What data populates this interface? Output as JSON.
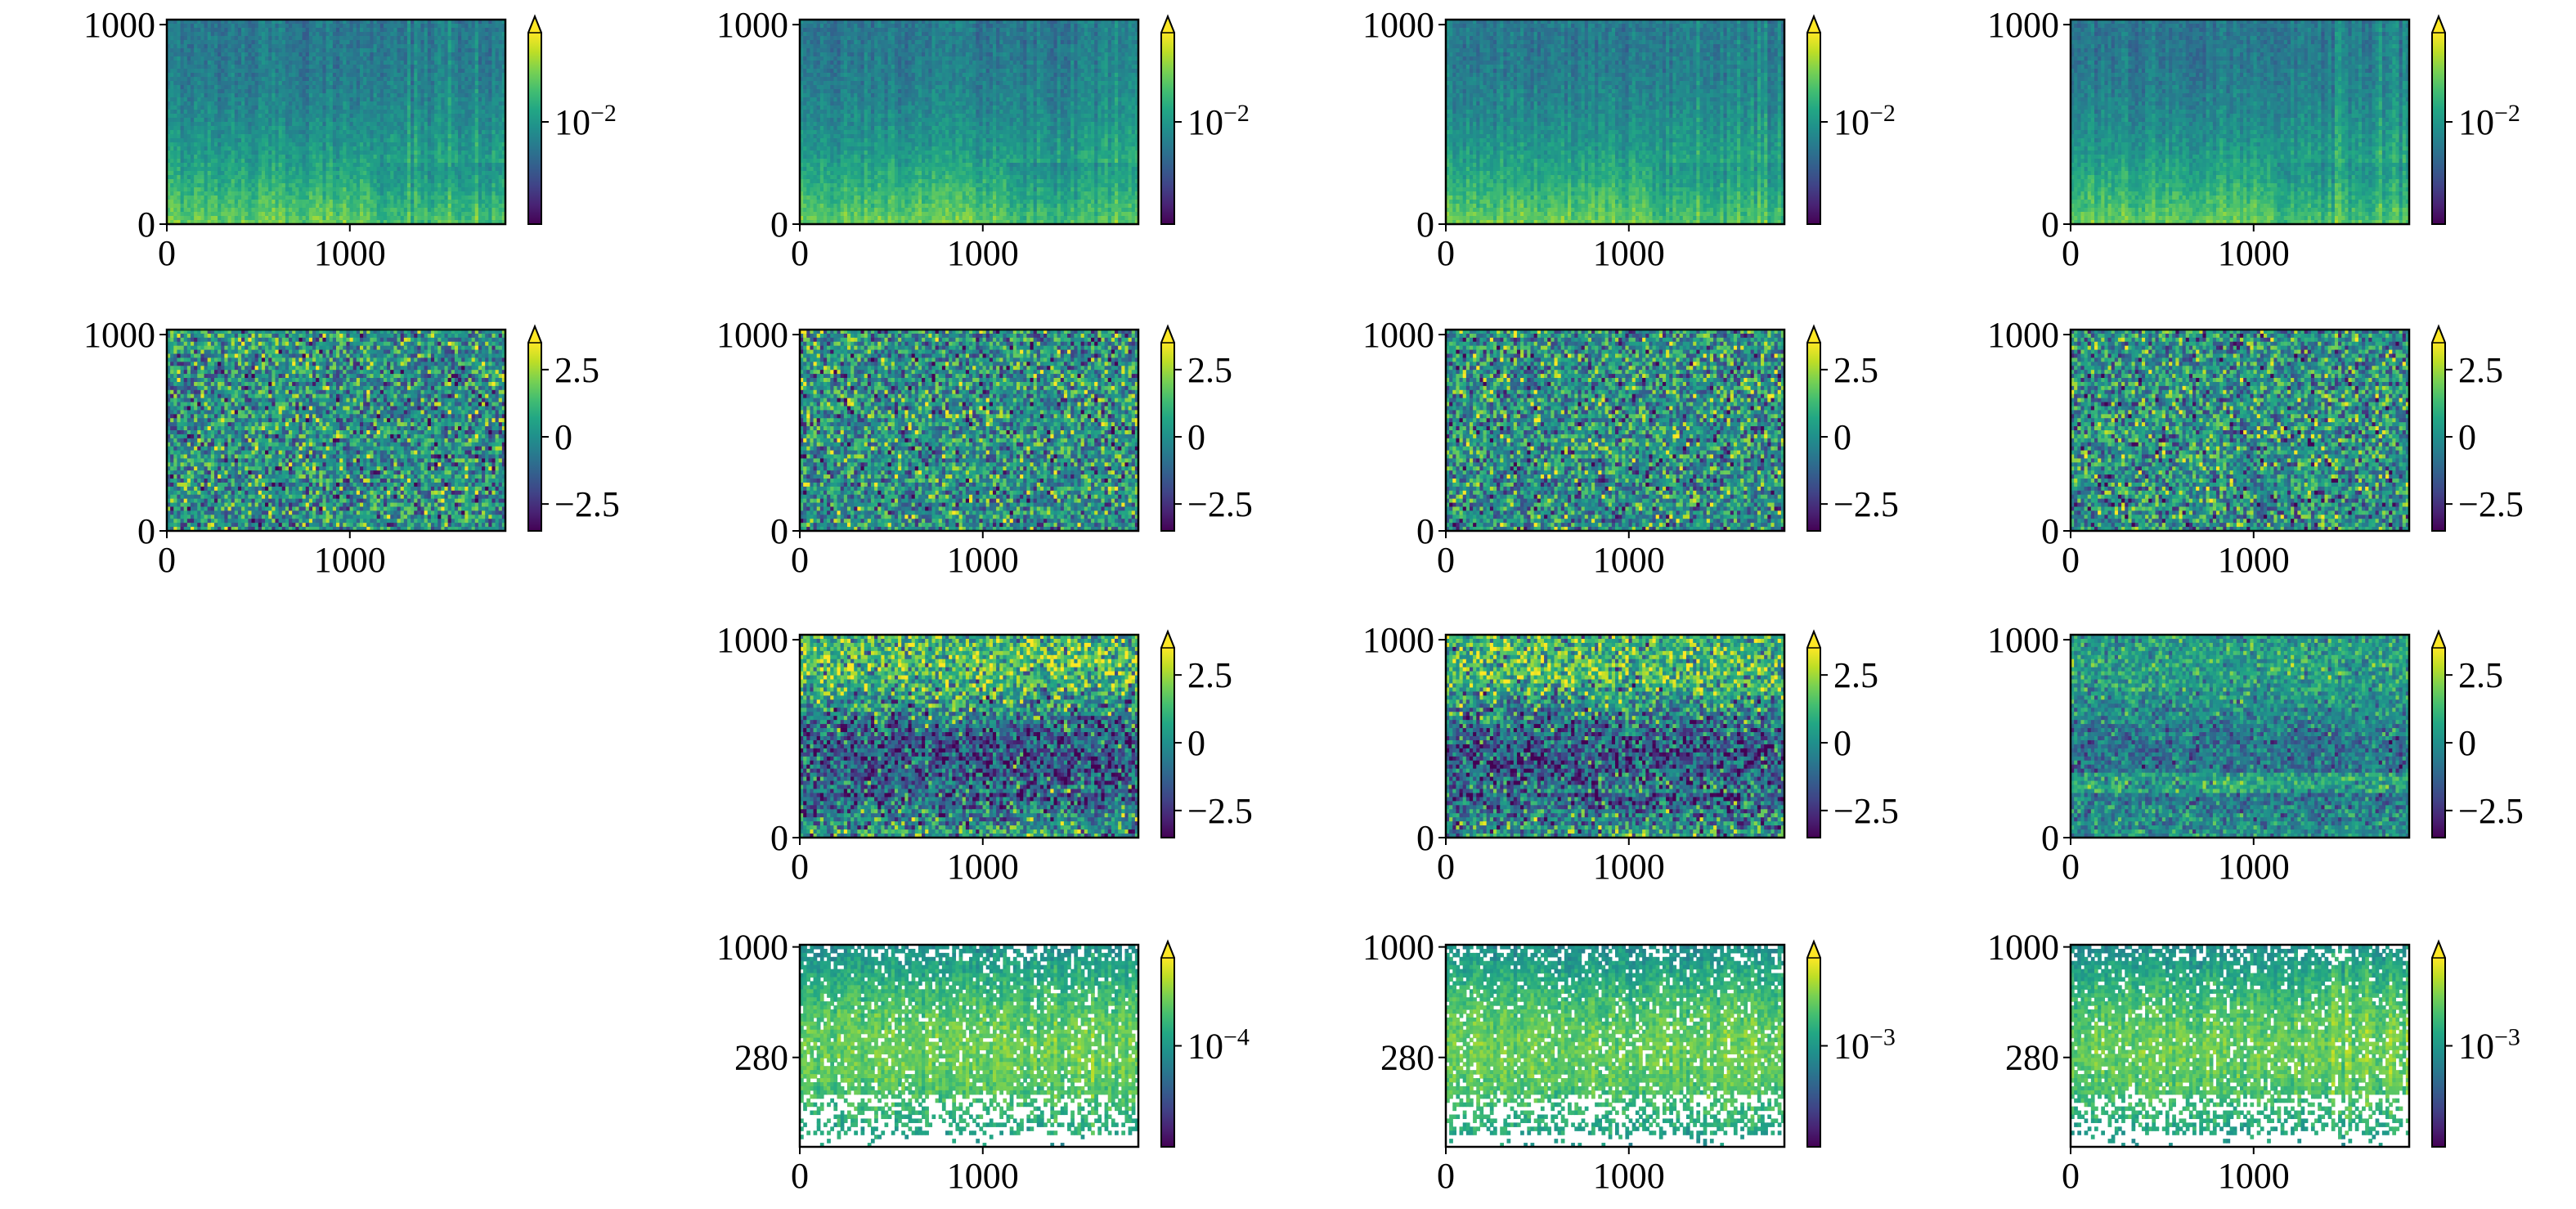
{
  "chart_data": {
    "type": "heatmap",
    "layout": {
      "rows": 4,
      "cols": 4,
      "empty_panels": [
        [
          2,
          0
        ],
        [
          3,
          0
        ]
      ]
    },
    "colormap": "viridis",
    "colorbar_extend": "max",
    "x_axis": {
      "ticks": [
        0,
        1000
      ],
      "tick_labels": [
        "0",
        "1000"
      ],
      "range": [
        0,
        1850
      ]
    },
    "panels": [
      {
        "row": 0,
        "col": 0,
        "variant": "spectrogram",
        "y_ticks": [
          "0",
          "1000"
        ],
        "y_range": [
          0,
          1025
        ],
        "colorbar": {
          "scale": "log",
          "ticks": [
            "10−2"
          ]
        }
      },
      {
        "row": 0,
        "col": 1,
        "variant": "spectrogram",
        "y_ticks": [
          "0",
          "1000"
        ],
        "y_range": [
          0,
          1025
        ],
        "colorbar": {
          "scale": "log",
          "ticks": [
            "10−2"
          ]
        }
      },
      {
        "row": 0,
        "col": 2,
        "variant": "spectrogram",
        "y_ticks": [
          "0",
          "1000"
        ],
        "y_range": [
          0,
          1025
        ],
        "colorbar": {
          "scale": "log",
          "ticks": [
            "10−2"
          ]
        }
      },
      {
        "row": 0,
        "col": 3,
        "variant": "spectrogram",
        "y_ticks": [
          "0",
          "1000"
        ],
        "y_range": [
          0,
          1025
        ],
        "colorbar": {
          "scale": "log",
          "ticks": [
            "10−2"
          ]
        }
      },
      {
        "row": 1,
        "col": 0,
        "variant": "noise",
        "y_ticks": [
          "0",
          "1000"
        ],
        "y_range": [
          0,
          1025
        ],
        "colorbar": {
          "scale": "linear",
          "range": [
            -3.5,
            3.5
          ],
          "ticks": [
            "2.5",
            "0",
            "−2.5"
          ]
        }
      },
      {
        "row": 1,
        "col": 1,
        "variant": "noise",
        "y_ticks": [
          "0",
          "1000"
        ],
        "y_range": [
          0,
          1025
        ],
        "colorbar": {
          "scale": "linear",
          "range": [
            -3.5,
            3.5
          ],
          "ticks": [
            "2.5",
            "0",
            "−2.5"
          ]
        }
      },
      {
        "row": 1,
        "col": 2,
        "variant": "noise",
        "y_ticks": [
          "0",
          "1000"
        ],
        "y_range": [
          0,
          1025
        ],
        "colorbar": {
          "scale": "linear",
          "range": [
            -3.5,
            3.5
          ],
          "ticks": [
            "2.5",
            "0",
            "−2.5"
          ]
        }
      },
      {
        "row": 1,
        "col": 3,
        "variant": "noise",
        "y_ticks": [
          "0",
          "1000"
        ],
        "y_range": [
          0,
          1025
        ],
        "colorbar": {
          "scale": "linear",
          "range": [
            -3.5,
            3.5
          ],
          "ticks": [
            "2.5",
            "0",
            "−2.5"
          ]
        }
      },
      {
        "row": 2,
        "col": 1,
        "variant": "banded",
        "y_ticks": [
          "0",
          "1000"
        ],
        "y_range": [
          0,
          1025
        ],
        "colorbar": {
          "scale": "linear",
          "range": [
            -3.5,
            3.5
          ],
          "ticks": [
            "2.5",
            "0",
            "−2.5"
          ]
        }
      },
      {
        "row": 2,
        "col": 2,
        "variant": "banded",
        "y_ticks": [
          "0",
          "1000"
        ],
        "y_range": [
          0,
          1025
        ],
        "colorbar": {
          "scale": "linear",
          "range": [
            -3.5,
            3.5
          ],
          "ticks": [
            "2.5",
            "0",
            "−2.5"
          ]
        }
      },
      {
        "row": 2,
        "col": 3,
        "variant": "banded-mild",
        "y_ticks": [
          "0",
          "1000"
        ],
        "y_range": [
          0,
          1025
        ],
        "colorbar": {
          "scale": "linear",
          "range": [
            -3.5,
            3.5
          ],
          "ticks": [
            "2.5",
            "0",
            "−2.5"
          ]
        }
      },
      {
        "row": 3,
        "col": 1,
        "variant": "sparse",
        "y_scale": "log",
        "y_ticks": [
          "280",
          "1000"
        ],
        "y_range": [
          100,
          1025
        ],
        "colorbar": {
          "scale": "log",
          "ticks": [
            "10−4"
          ]
        }
      },
      {
        "row": 3,
        "col": 2,
        "variant": "sparse",
        "y_scale": "log",
        "y_ticks": [
          "280",
          "1000"
        ],
        "y_range": [
          100,
          1025
        ],
        "colorbar": {
          "scale": "log",
          "ticks": [
            "10−3"
          ]
        }
      },
      {
        "row": 3,
        "col": 3,
        "variant": "sparse",
        "y_scale": "log",
        "y_ticks": [
          "280",
          "1000"
        ],
        "y_range": [
          100,
          1025
        ],
        "colorbar": {
          "scale": "log",
          "ticks": [
            "10−3"
          ]
        }
      }
    ]
  }
}
